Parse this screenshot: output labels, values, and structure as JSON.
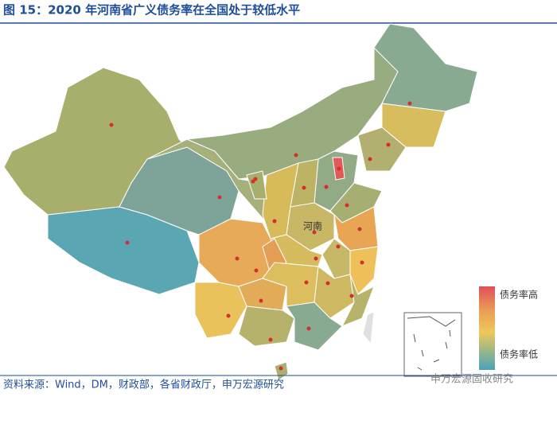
{
  "header": {
    "title": "图 15：2020 年河南省广义债务率在全国处于较低水平"
  },
  "map": {
    "label": "河南"
  },
  "legend": {
    "high": "债务率高",
    "low": "债务率低"
  },
  "footer": {
    "source": "资料来源：Wind，DM，财政部，各省财政厅，申万宏源研究",
    "watermark": "申万宏源固收研究"
  }
}
